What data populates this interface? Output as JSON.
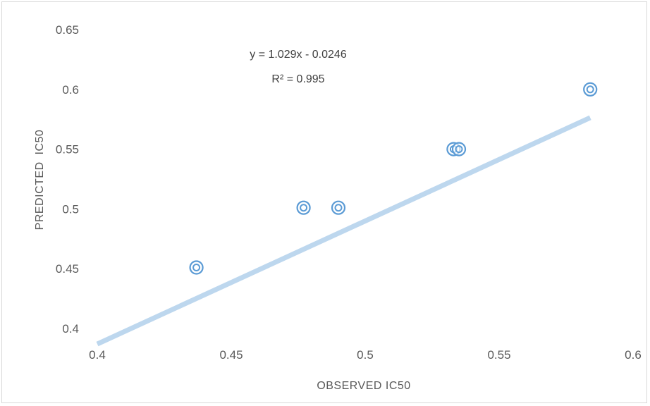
{
  "chart_data": {
    "type": "scatter",
    "title": "",
    "xlabel": "OBSERVED IC50",
    "ylabel": "PREDICTED  IC50",
    "xlim": [
      0.4,
      0.6
    ],
    "ylim": [
      0.4,
      0.65
    ],
    "x_ticks": [
      "0.4",
      "0.45",
      "0.5",
      "0.55",
      "0.6"
    ],
    "y_ticks": [
      "0.4",
      "0.45",
      "0.5",
      "0.55",
      "0.6",
      "0.65"
    ],
    "grid": false,
    "legend": "none",
    "series": [
      {
        "points": [
          {
            "x": 0.437,
            "y": 0.451
          },
          {
            "x": 0.477,
            "y": 0.501
          },
          {
            "x": 0.49,
            "y": 0.501
          },
          {
            "x": 0.533,
            "y": 0.55
          },
          {
            "x": 0.535,
            "y": 0.55
          },
          {
            "x": 0.584,
            "y": 0.6
          }
        ]
      }
    ],
    "trendline": {
      "slope": 1.029,
      "intercept": -0.0246,
      "x_range": [
        0.4,
        0.584
      ],
      "color": "#bdd7ee"
    },
    "annotations": {
      "equation": "y = 1.029x - 0.0246",
      "r_squared": "R² = 0.995"
    },
    "marker_color": "#5b9bd5"
  }
}
